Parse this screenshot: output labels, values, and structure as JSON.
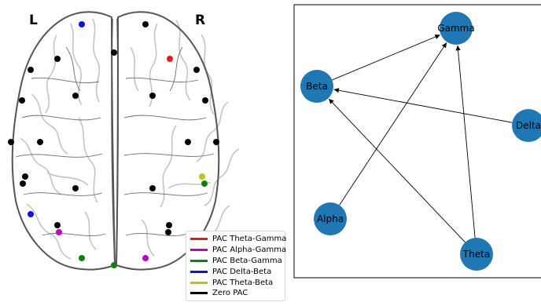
{
  "brain": {
    "left_label": "L",
    "right_label": "R",
    "electrodes": [
      {
        "id": "e1",
        "color": "blue"
      },
      {
        "id": "e2",
        "color": "black"
      },
      {
        "id": "e3",
        "color": "black"
      },
      {
        "id": "e4",
        "color": "red"
      },
      {
        "id": "e5",
        "color": "black"
      },
      {
        "id": "e6",
        "color": "black"
      },
      {
        "id": "e7",
        "color": "black"
      },
      {
        "id": "e8",
        "color": "black"
      },
      {
        "id": "e9",
        "color": "black"
      },
      {
        "id": "e10",
        "color": "black"
      },
      {
        "id": "e11",
        "color": "black"
      },
      {
        "id": "e12",
        "color": "black"
      },
      {
        "id": "e13",
        "color": "black"
      },
      {
        "id": "e14",
        "color": "black"
      },
      {
        "id": "e15",
        "color": "black"
      },
      {
        "id": "e16",
        "color": "black"
      },
      {
        "id": "e17",
        "color": "green"
      },
      {
        "id": "e18",
        "color": "black"
      },
      {
        "id": "e19",
        "color": "yellow"
      },
      {
        "id": "e20",
        "color": "blue"
      },
      {
        "id": "e21",
        "color": "black"
      },
      {
        "id": "e22",
        "color": "black"
      },
      {
        "id": "e23",
        "color": "magenta"
      },
      {
        "id": "e24",
        "color": "black"
      },
      {
        "id": "e25",
        "color": "black"
      },
      {
        "id": "e26",
        "color": "black"
      },
      {
        "id": "e27",
        "color": "green"
      },
      {
        "id": "e28",
        "color": "magenta"
      },
      {
        "id": "e29",
        "color": "green"
      }
    ]
  },
  "legend": {
    "items": [
      {
        "label": "PAC Theta-Gamma",
        "color": "#e41a1c"
      },
      {
        "label": "PAC Alpha-Gamma",
        "color": "#c000c0"
      },
      {
        "label": "PAC Beta-Gamma",
        "color": "#108010"
      },
      {
        "label": "PAC Delta-Beta",
        "color": "#1010e0"
      },
      {
        "label": "PAC Theta-Beta",
        "color": "#c0c010"
      },
      {
        "label": "Zero PAC",
        "color": "#000000"
      }
    ]
  },
  "graph": {
    "node_color": "#1f77b4",
    "nodes": [
      {
        "id": "gamma",
        "label": "Gamma"
      },
      {
        "id": "beta",
        "label": "Beta"
      },
      {
        "id": "delta",
        "label": "Delta"
      },
      {
        "id": "alpha",
        "label": "Alpha"
      },
      {
        "id": "theta",
        "label": "Theta"
      }
    ],
    "edges": [
      {
        "from": "beta",
        "to": "gamma"
      },
      {
        "from": "delta",
        "to": "beta"
      },
      {
        "from": "alpha",
        "to": "gamma"
      },
      {
        "from": "theta",
        "to": "gamma"
      },
      {
        "from": "theta",
        "to": "beta"
      }
    ]
  },
  "colors": {
    "red": "#e41a1c",
    "magenta": "#c000c0",
    "green": "#108010",
    "blue": "#1010e0",
    "yellow": "#c0c010",
    "black": "#000000"
  }
}
